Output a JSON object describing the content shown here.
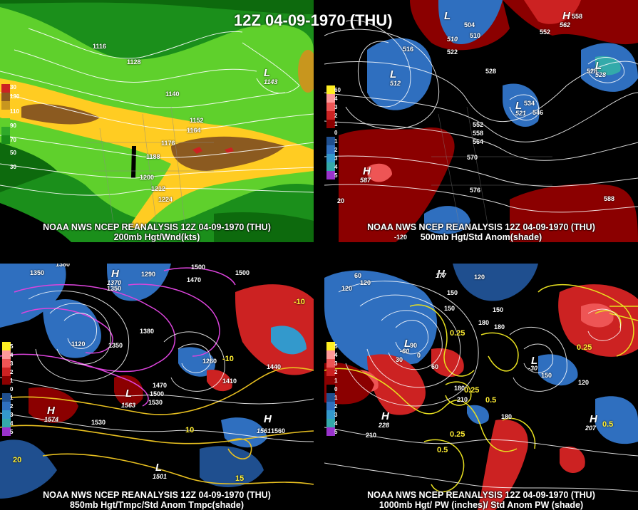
{
  "title": "12Z 04-09-1970 (THU)",
  "panels": [
    {
      "id": "p1",
      "caption_line1": "NOAA NWS NCEP REANALYSIS 12Z 04-09-1970 (THU)",
      "caption_line2": "200mb Hgt/Wnd(kts)",
      "contour_labels": [
        "1116",
        "1128",
        "1140",
        "1152",
        "1164",
        "1176",
        "1188",
        "1200",
        "1212",
        "1224"
      ],
      "highs_lows": [
        {
          "type": "L",
          "value": "1143"
        }
      ],
      "legend": [
        "30",
        "130",
        "110",
        "90",
        "70",
        "50",
        "30"
      ],
      "legend_colors": [
        "#cc2222",
        "#8b5a20",
        "#c8961e",
        "#ffcc22",
        "#5fd02c",
        "#2faa2a",
        "#1a8f1a"
      ]
    },
    {
      "id": "p2",
      "caption_line1": "NOAA NWS NCEP REANALYSIS 12Z 04-09-1970 (THU)",
      "caption_line2": "500mb Hgt/Std Anom(shade)",
      "contour_labels": [
        "504",
        "510",
        "516",
        "522",
        "528",
        "534",
        "546",
        "552",
        "558",
        "564",
        "570",
        "576",
        "588",
        "558",
        "552",
        "528"
      ],
      "highs_lows": [
        {
          "type": "L",
          "value": "510"
        },
        {
          "type": "L",
          "value": "512"
        },
        {
          "type": "L",
          "value": "521"
        },
        {
          "type": "L",
          "value": "528"
        },
        {
          "type": "H",
          "value": "562"
        },
        {
          "type": "H",
          "value": "587"
        }
      ],
      "extra_labels": [
        "20",
        "-120"
      ],
      "legend": [
        "60",
        "4",
        "3",
        "2",
        "1",
        "0",
        "1",
        "2",
        "3",
        "4",
        "5"
      ],
      "legend_colors": [
        "#ffee22",
        "#ff9999",
        "#ee5555",
        "#cc2222",
        "#8b0000",
        "#000000",
        "#1f4f8f",
        "#2f6fbf",
        "#3399cc",
        "#33aaaa",
        "#9933cc"
      ]
    },
    {
      "id": "p3",
      "caption_line1": "NOAA NWS NCEP REANALYSIS 12Z 04-09-1970 (THU)",
      "caption_line2": "850mb Hgt/Tmpc/Std Anom Tmpc(shade)",
      "contour_labels": [
        "1350",
        "1380",
        "1350",
        "1290",
        "1470",
        "1500",
        "1500",
        "1120",
        "1350",
        "1380",
        "1260",
        "1410",
        "1440",
        "1470",
        "1500",
        "1530",
        "1530",
        "1560"
      ],
      "temp_labels": [
        "-10",
        "-10",
        "10",
        "15",
        "20"
      ],
      "highs_lows": [
        {
          "type": "H",
          "value": "1370"
        },
        {
          "type": "H",
          "value": "1574"
        },
        {
          "type": "H",
          "value": "1561"
        },
        {
          "type": "L",
          "value": "1501"
        },
        {
          "type": "L",
          "value": "1563"
        }
      ],
      "legend": [
        "5",
        "4",
        "3",
        "2",
        "1",
        "0",
        "1",
        "2",
        "3",
        "4",
        "5"
      ],
      "legend_colors": [
        "#ffee22",
        "#ff9999",
        "#ee5555",
        "#cc2222",
        "#8b0000",
        "#000000",
        "#1f4f8f",
        "#2f6fbf",
        "#3399cc",
        "#33aaaa",
        "#9933cc"
      ]
    },
    {
      "id": "p4",
      "caption_line1": "NOAA NWS NCEP REANALYSIS 12Z 04-09-1970 (THU)",
      "caption_line2": "1000mb Hgt/ PW (inches)/ Std Anom PW (shade)",
      "contour_labels": [
        "60",
        "120",
        "150",
        "120",
        "150",
        "180",
        "180",
        "90",
        "30",
        "0",
        "60",
        "120",
        "150",
        "180",
        "210",
        "210",
        "180",
        "150",
        "120"
      ],
      "pw_labels": [
        "0.25",
        "0.25",
        "0.25",
        "0.5",
        "0.5",
        "0.25",
        "0.5"
      ],
      "highs_lows": [
        {
          "type": "H",
          "value": "177"
        },
        {
          "type": "H",
          "value": "228"
        },
        {
          "type": "H",
          "value": "207"
        },
        {
          "type": "L",
          "value": "-60"
        },
        {
          "type": "L",
          "value": "-30"
        }
      ],
      "legend": [
        "5",
        "4",
        "3",
        "2",
        "1",
        "0",
        "1",
        "2",
        "3",
        "4",
        "5"
      ],
      "legend_colors": [
        "#ffee22",
        "#ff9999",
        "#ee5555",
        "#cc2222",
        "#8b0000",
        "#000000",
        "#1f4f8f",
        "#2f6fbf",
        "#3399cc",
        "#33aaaa",
        "#9933cc"
      ]
    }
  ]
}
